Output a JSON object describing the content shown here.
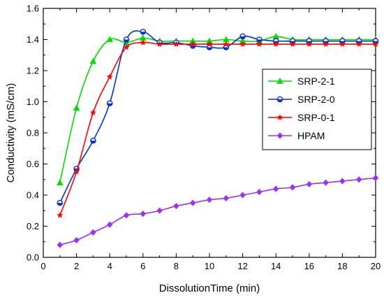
{
  "chart_data": {
    "type": "line",
    "xlabel": "DissolutionTime (min)",
    "ylabel": "Conductivity (mS/cm)",
    "xlim": [
      0,
      20
    ],
    "ylim": [
      0.0,
      1.6
    ],
    "xticks": [
      "0",
      "2",
      "4",
      "6",
      "8",
      "10",
      "12",
      "14",
      "16",
      "18",
      "20"
    ],
    "yticks": [
      "0.0",
      "0.2",
      "0.4",
      "0.6",
      "0.8",
      "1.0",
      "1.2",
      "1.4",
      "1.6"
    ],
    "grid": false,
    "legend_position": "middle-right",
    "series": [
      {
        "name": "SRP-2-1",
        "color": "#00dd00",
        "marker": "triangle",
        "x": [
          1,
          2,
          3,
          4,
          5,
          6,
          7,
          8,
          9,
          10,
          11,
          12,
          13,
          14,
          15,
          16,
          17,
          18,
          19,
          20
        ],
        "values": [
          0.48,
          0.96,
          1.26,
          1.4,
          1.38,
          1.41,
          1.39,
          1.39,
          1.39,
          1.39,
          1.4,
          1.39,
          1.39,
          1.42,
          1.4,
          1.4,
          1.4,
          1.4,
          1.4,
          1.4
        ]
      },
      {
        "name": "SRP-2-0",
        "color": "#0033cc",
        "marker": "circle",
        "x": [
          1,
          2,
          3,
          4,
          5,
          6,
          7,
          8,
          9,
          10,
          11,
          12,
          13,
          14,
          15,
          16,
          17,
          18,
          19,
          20
        ],
        "values": [
          0.35,
          0.57,
          0.75,
          0.99,
          1.4,
          1.45,
          1.38,
          1.38,
          1.36,
          1.35,
          1.35,
          1.42,
          1.4,
          1.39,
          1.39,
          1.39,
          1.39,
          1.39,
          1.39,
          1.39
        ]
      },
      {
        "name": "SRP-0-1",
        "color": "#ff0000",
        "marker": "star",
        "x": [
          1,
          2,
          3,
          4,
          5,
          6,
          7,
          8,
          9,
          10,
          11,
          12,
          13,
          14,
          15,
          16,
          17,
          18,
          19,
          20
        ],
        "values": [
          0.27,
          0.55,
          0.93,
          1.16,
          1.35,
          1.38,
          1.37,
          1.37,
          1.37,
          1.37,
          1.37,
          1.37,
          1.37,
          1.37,
          1.37,
          1.37,
          1.37,
          1.37,
          1.37,
          1.37
        ]
      },
      {
        "name": "HPAM",
        "color": "#9b30ff",
        "marker": "diamond",
        "x": [
          1,
          2,
          3,
          4,
          5,
          6,
          7,
          8,
          9,
          10,
          11,
          12,
          13,
          14,
          15,
          16,
          17,
          18,
          19,
          20
        ],
        "values": [
          0.08,
          0.11,
          0.16,
          0.21,
          0.27,
          0.28,
          0.3,
          0.33,
          0.35,
          0.37,
          0.38,
          0.4,
          0.42,
          0.44,
          0.45,
          0.47,
          0.48,
          0.49,
          0.5,
          0.51
        ]
      }
    ]
  }
}
